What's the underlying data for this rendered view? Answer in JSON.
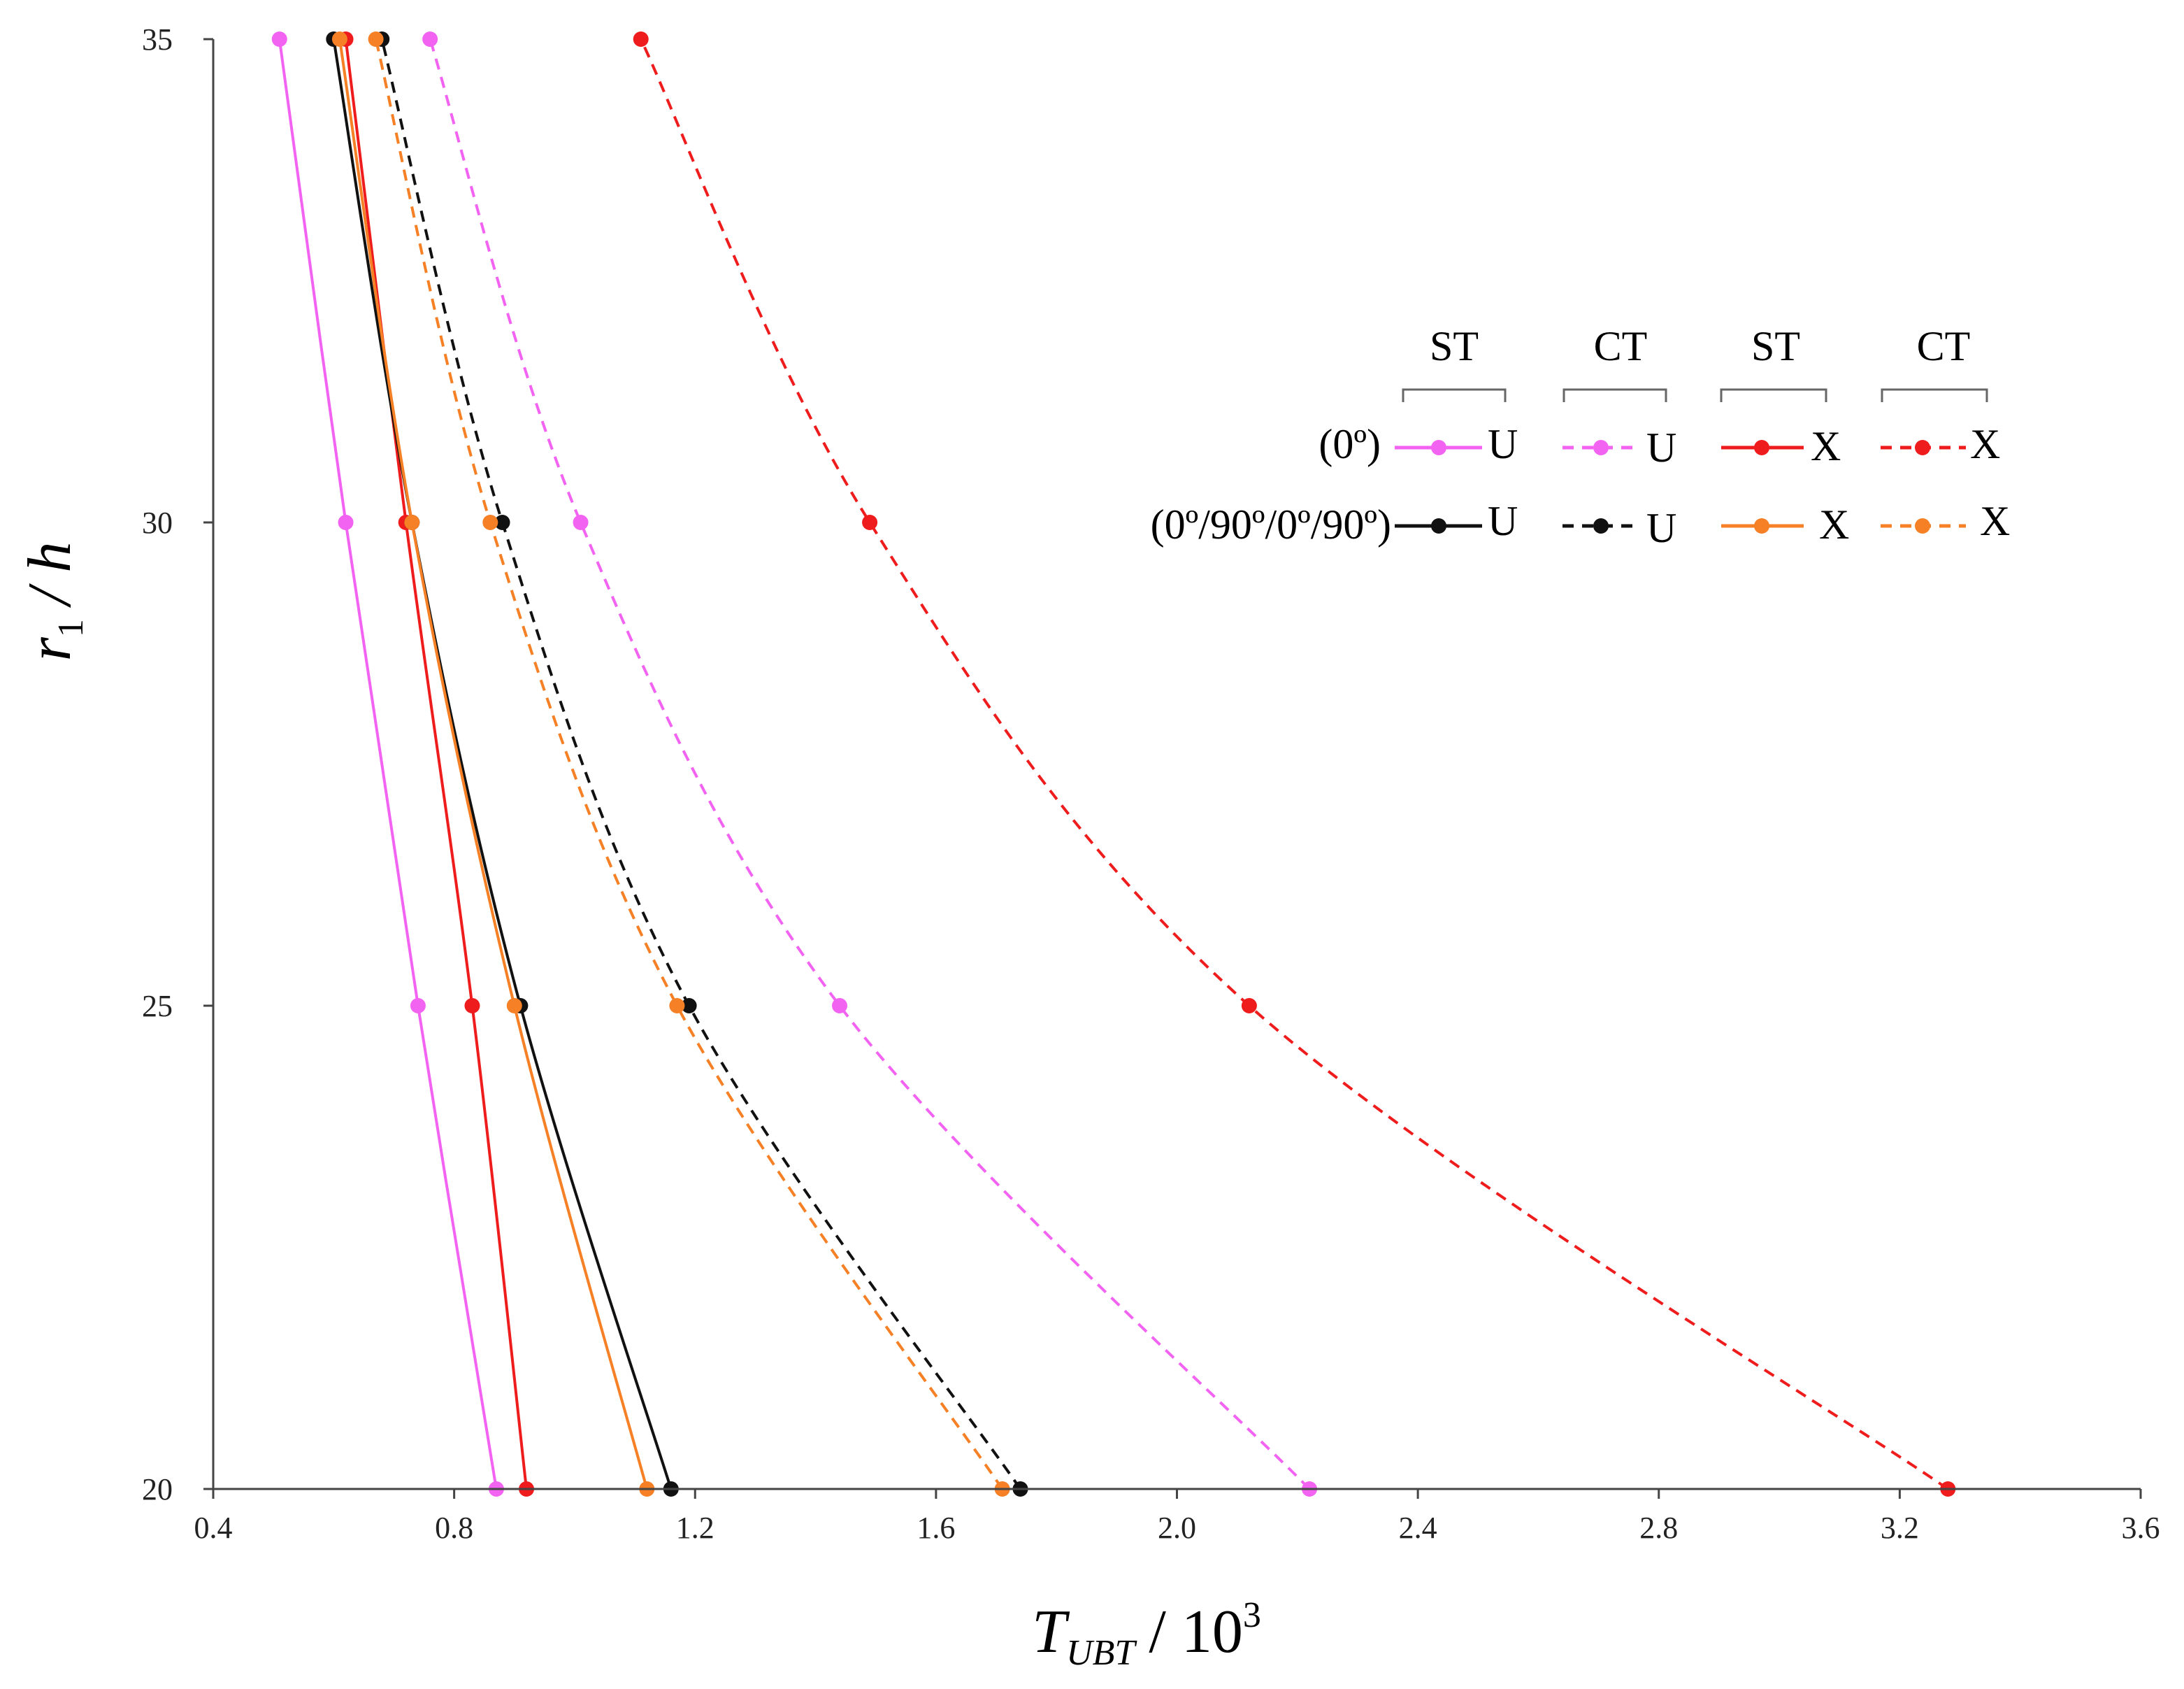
{
  "chart_data": {
    "type": "line",
    "xlabel_main": "T",
    "xlabel_sub": "UBT",
    "xlabel_suffix": "/ 10",
    "xlabel_sup": "3",
    "ylabel_main": "r",
    "ylabel_sub": "1",
    "ylabel_suffix": "/ h",
    "xlim": [
      0.4,
      3.6
    ],
    "ylim": [
      20,
      35
    ],
    "x_ticks": [
      "0.4",
      "0.8",
      "1.2",
      "1.6",
      "2.0",
      "2.4",
      "2.8",
      "3.2",
      "3.6"
    ],
    "y_ticks": [
      "20",
      "25",
      "30",
      "35"
    ],
    "legend": {
      "placement": "top-right",
      "column_headers": [
        "ST",
        "CT",
        "ST",
        "CT"
      ],
      "row_labels": [
        "(0º)",
        "(0º/90º/0º/90º)"
      ],
      "entry_labels": [
        [
          "U",
          "U",
          "X",
          "X"
        ],
        [
          "U",
          "U",
          "X",
          "X"
        ]
      ]
    },
    "series": [
      {
        "name": "(0º) ST U",
        "color": "#f263f2",
        "style": "solid",
        "y": [
          20,
          25,
          30,
          35
        ],
        "x": [
          0.87,
          0.74,
          0.62,
          0.51
        ]
      },
      {
        "name": "(0º) CT U",
        "color": "#f263f2",
        "style": "dashed",
        "y": [
          20,
          25,
          30,
          35
        ],
        "x": [
          2.22,
          1.44,
          1.01,
          0.76
        ]
      },
      {
        "name": "(0º) ST X",
        "color": "#ee1c1c",
        "style": "solid",
        "y": [
          20,
          25,
          30,
          35
        ],
        "x": [
          0.92,
          0.83,
          0.72,
          0.62
        ]
      },
      {
        "name": "(0º) CT X",
        "color": "#ee1c1c",
        "style": "dashed",
        "y": [
          20,
          25,
          30,
          35
        ],
        "x": [
          3.28,
          2.12,
          1.49,
          1.11
        ]
      },
      {
        "name": "(0º/90º/0º/90º) ST U",
        "color": "#111111",
        "style": "solid",
        "y": [
          20,
          25,
          30,
          35
        ],
        "x": [
          1.16,
          0.91,
          0.73,
          0.6
        ]
      },
      {
        "name": "(0º/90º/0º/90º) CT U",
        "color": "#111111",
        "style": "dashed",
        "y": [
          20,
          25,
          30,
          35
        ],
        "x": [
          1.74,
          1.19,
          0.88,
          0.68
        ]
      },
      {
        "name": "(0º/90º/0º/90º) ST X",
        "color": "#f58025",
        "style": "solid",
        "y": [
          20,
          25,
          30,
          35
        ],
        "x": [
          1.12,
          0.9,
          0.73,
          0.61
        ]
      },
      {
        "name": "(0º/90º/0º/90º) CT X",
        "color": "#f58025",
        "style": "dashed",
        "y": [
          20,
          25,
          30,
          35
        ],
        "x": [
          1.71,
          1.17,
          0.86,
          0.67
        ]
      }
    ]
  }
}
